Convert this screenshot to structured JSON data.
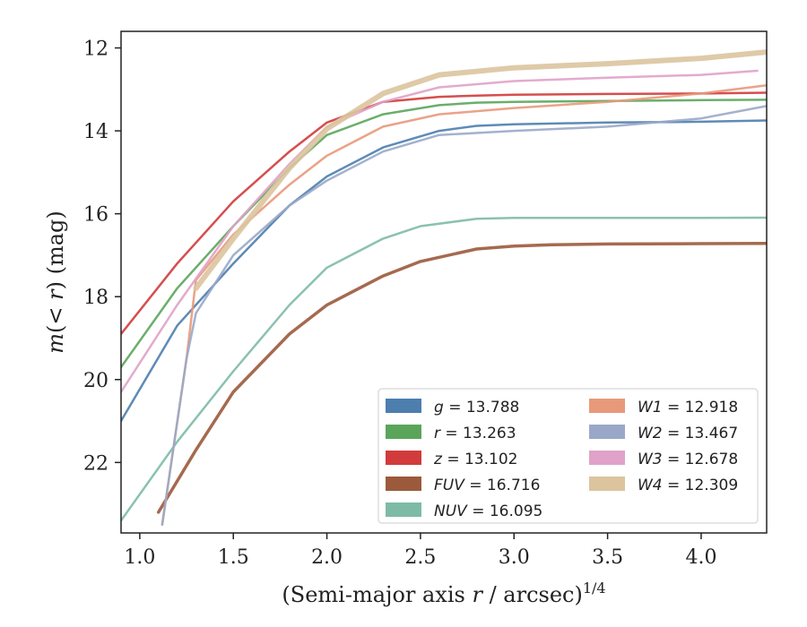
{
  "chart_data": {
    "type": "line",
    "xlabel": "(Semi-major axis r / arcsec)^{1/4}",
    "xlabel_parts": {
      "pre": "(Semi-major axis ",
      "var": "r",
      "post": " / arcsec)",
      "sup": "1/4"
    },
    "ylabel": "m(< r) (mag)",
    "ylabel_parts": {
      "pre": "m",
      "mid": "(< ",
      "var": "r",
      "post": ") (mag)"
    },
    "xlim": [
      0.9,
      4.35
    ],
    "ylim": [
      23.7,
      11.6
    ],
    "y_inverted": true,
    "xticks": [
      1.0,
      1.5,
      2.0,
      2.5,
      3.0,
      3.5,
      4.0
    ],
    "xtick_labels": [
      "1.0",
      "1.5",
      "2.0",
      "2.5",
      "3.0",
      "3.5",
      "4.0"
    ],
    "yticks": [
      12,
      14,
      16,
      18,
      20,
      22
    ],
    "ytick_labels": [
      "12",
      "14",
      "16",
      "18",
      "20",
      "22"
    ],
    "grid": false,
    "legend_placement": "lower-right",
    "series": [
      {
        "name": "g = 13.788",
        "label_var": "g",
        "label_val": "= 13.788",
        "color": "#4c7eae",
        "x": [
          0.9,
          1.2,
          1.5,
          1.8,
          2.0,
          2.3,
          2.6,
          2.8,
          3.0,
          3.5,
          4.0,
          4.35
        ],
        "y": [
          21.0,
          18.7,
          17.2,
          15.8,
          15.1,
          14.4,
          14.0,
          13.88,
          13.84,
          13.8,
          13.78,
          13.75
        ]
      },
      {
        "name": "r = 13.263",
        "label_var": "r",
        "label_val": "= 13.263",
        "color": "#5ba55b",
        "x": [
          0.9,
          1.2,
          1.5,
          1.8,
          2.0,
          2.3,
          2.6,
          2.8,
          3.0,
          3.5,
          4.0,
          4.35
        ],
        "y": [
          19.7,
          17.8,
          16.3,
          14.9,
          14.1,
          13.6,
          13.38,
          13.32,
          13.3,
          13.28,
          13.26,
          13.25
        ]
      },
      {
        "name": "z = 13.102",
        "label_var": "z",
        "label_val": "= 13.102",
        "color": "#d13b3b",
        "x": [
          0.9,
          1.2,
          1.5,
          1.8,
          2.0,
          2.3,
          2.6,
          2.8,
          3.0,
          3.5,
          4.0,
          4.35
        ],
        "y": [
          18.9,
          17.2,
          15.7,
          14.5,
          13.8,
          13.3,
          13.18,
          13.15,
          13.13,
          13.11,
          13.1,
          13.08
        ]
      },
      {
        "name": "FUV = 16.716",
        "label_var": "FUV",
        "label_val": "= 16.716",
        "color": "#9b5a3c",
        "x": [
          1.1,
          1.3,
          1.5,
          1.8,
          2.0,
          2.3,
          2.5,
          2.8,
          3.0,
          3.2,
          3.5,
          4.0,
          4.35
        ],
        "y": [
          23.2,
          21.7,
          20.3,
          18.9,
          18.2,
          17.5,
          17.15,
          16.85,
          16.78,
          16.75,
          16.73,
          16.72,
          16.716
        ]
      },
      {
        "name": "NUV = 16.095",
        "label_var": "NUV",
        "label_val": "= 16.095",
        "color": "#7dbba6",
        "x": [
          0.9,
          1.2,
          1.5,
          1.8,
          2.0,
          2.3,
          2.5,
          2.8,
          3.0,
          3.5,
          4.0,
          4.35
        ],
        "y": [
          23.4,
          21.5,
          19.8,
          18.2,
          17.3,
          16.6,
          16.3,
          16.12,
          16.1,
          16.1,
          16.1,
          16.095
        ]
      },
      {
        "name": "W1 = 12.918",
        "label_var": "W1",
        "label_val": "= 12.918",
        "color": "#e8997a",
        "x": [
          1.12,
          1.25,
          1.3,
          1.5,
          1.8,
          2.0,
          2.3,
          2.6,
          3.0,
          3.5,
          4.0,
          4.35
        ],
        "y": [
          23.5,
          19.5,
          17.6,
          16.5,
          15.3,
          14.6,
          13.9,
          13.6,
          13.45,
          13.3,
          13.1,
          12.9
        ]
      },
      {
        "name": "W2 = 13.467",
        "label_var": "W2",
        "label_val": "= 13.467",
        "color": "#9aa8c8",
        "x": [
          1.12,
          1.25,
          1.3,
          1.5,
          1.8,
          2.0,
          2.3,
          2.6,
          3.0,
          3.5,
          4.0,
          4.35
        ],
        "y": [
          23.5,
          19.5,
          18.4,
          17.0,
          15.8,
          15.2,
          14.5,
          14.1,
          14.0,
          13.9,
          13.7,
          13.4
        ]
      },
      {
        "name": "W3 = 12.678",
        "label_var": "W3",
        "label_val": "= 12.678",
        "color": "#e0a2c8",
        "x": [
          0.9,
          1.2,
          1.5,
          1.8,
          2.0,
          2.3,
          2.6,
          3.0,
          3.5,
          4.0,
          4.3
        ],
        "y": [
          20.3,
          18.2,
          16.3,
          14.8,
          13.9,
          13.3,
          12.95,
          12.8,
          12.72,
          12.65,
          12.55
        ]
      },
      {
        "name": "W4 = 12.309",
        "label_var": "W4",
        "label_val": "= 12.309",
        "color": "#dcc49e",
        "x": [
          1.3,
          1.5,
          1.8,
          2.0,
          2.3,
          2.6,
          3.0,
          3.5,
          4.0,
          4.35
        ],
        "y": [
          17.8,
          16.6,
          14.9,
          13.95,
          13.1,
          12.65,
          12.48,
          12.38,
          12.25,
          12.1
        ]
      }
    ],
    "legend_columns": [
      [
        "g = 13.788",
        "r = 13.263",
        "z = 13.102",
        "FUV = 16.716",
        "NUV = 16.095"
      ],
      [
        "W1 = 12.918",
        "W2 = 13.467",
        "W3 = 12.678",
        "W4 = 12.309"
      ]
    ]
  }
}
